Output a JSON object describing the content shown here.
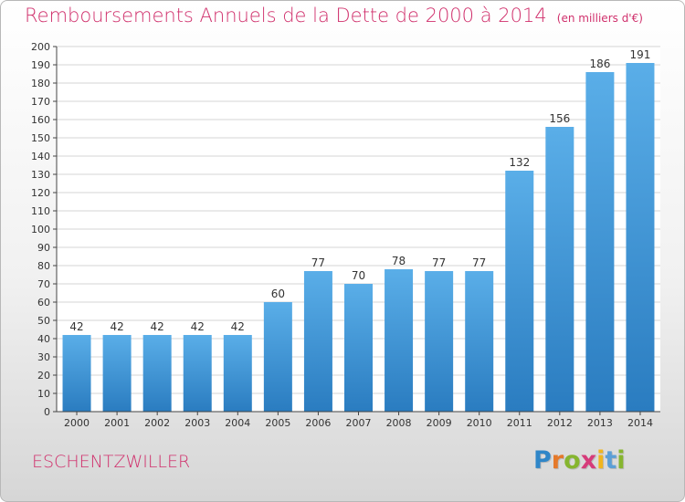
{
  "title": "Remboursements Annuels de la Dette de 2000 à 2014",
  "unit": "(en milliers d'€)",
  "commune": "ESCHENTZWILLER",
  "logo": "Proxiti",
  "colors": {
    "title": "#d0306c",
    "bar_top": "#5aaee8",
    "bar_bottom": "#2a7cc0",
    "grid": "#d4d4d4"
  },
  "chart_data": {
    "type": "bar",
    "categories": [
      "2000",
      "2001",
      "2002",
      "2003",
      "2004",
      "2005",
      "2006",
      "2007",
      "2008",
      "2009",
      "2010",
      "2011",
      "2012",
      "2013",
      "2014"
    ],
    "values": [
      42,
      42,
      42,
      42,
      42,
      60,
      77,
      70,
      78,
      77,
      77,
      132,
      156,
      186,
      191
    ],
    "data_labels": [
      "42",
      "42",
      "42",
      "42",
      "42",
      "60",
      "77",
      "70",
      "78",
      "77",
      "77",
      "132",
      "156",
      "186",
      "191"
    ],
    "title": "Remboursements Annuels de la Dette de 2000 à 2014",
    "xlabel": "",
    "ylabel": "",
    "ylim": [
      0,
      200
    ],
    "ytick_step": 10,
    "grid": true
  }
}
